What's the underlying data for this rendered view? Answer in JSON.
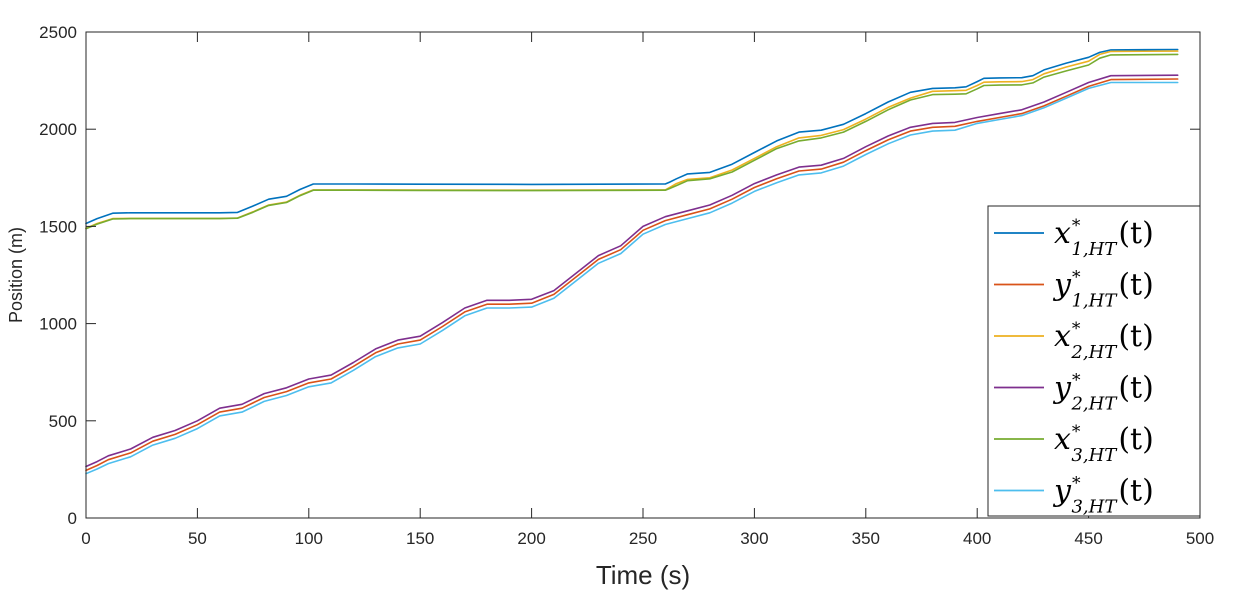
{
  "chart_data": {
    "type": "line",
    "xlabel": "Time (s)",
    "ylabel": "Position (m)",
    "xlim": [
      0,
      500
    ],
    "ylim": [
      0,
      2500
    ],
    "xticks": [
      0,
      50,
      100,
      150,
      200,
      250,
      300,
      350,
      400,
      450,
      500
    ],
    "yticks": [
      0,
      500,
      1000,
      1500,
      2000,
      2500
    ],
    "grid": false,
    "legend_position": "bottom-right",
    "series": [
      {
        "name": "x*1,HT(t)",
        "legend": {
          "var": "x",
          "sup": "*",
          "sub": "1,HT",
          "arg": "(t)"
        },
        "color": "#0072BD",
        "x": [
          0,
          5,
          12,
          20,
          40,
          60,
          68,
          75,
          82,
          90,
          96,
          102,
          120,
          150,
          200,
          260,
          262,
          265,
          270,
          280,
          290,
          300,
          310,
          320,
          330,
          340,
          350,
          360,
          370,
          380,
          390,
          395,
          400,
          403,
          410,
          420,
          425,
          430,
          440,
          450,
          455,
          460,
          490
        ],
        "y": [
          1515,
          1540,
          1568,
          1570,
          1570,
          1570,
          1572,
          1605,
          1640,
          1655,
          1690,
          1718,
          1718,
          1717,
          1716,
          1718,
          1728,
          1745,
          1770,
          1778,
          1820,
          1880,
          1940,
          1985,
          1995,
          2025,
          2080,
          2140,
          2190,
          2210,
          2213,
          2218,
          2245,
          2262,
          2264,
          2265,
          2275,
          2305,
          2340,
          2370,
          2395,
          2408,
          2410
        ]
      },
      {
        "name": "y*1,HT(t)",
        "legend": {
          "var": "y",
          "sup": "*",
          "sub": "1,HT",
          "arg": "(t)"
        },
        "color": "#D95319",
        "x": [
          0,
          5,
          10,
          20,
          30,
          40,
          50,
          60,
          70,
          80,
          90,
          100,
          110,
          120,
          130,
          140,
          150,
          160,
          170,
          180,
          190,
          200,
          210,
          220,
          230,
          240,
          250,
          260,
          270,
          280,
          290,
          300,
          310,
          320,
          330,
          340,
          350,
          360,
          370,
          380,
          390,
          400,
          410,
          420,
          430,
          440,
          450,
          460,
          490
        ],
        "y": [
          245,
          270,
          300,
          335,
          395,
          430,
          480,
          545,
          565,
          620,
          650,
          695,
          715,
          780,
          850,
          895,
          915,
          985,
          1060,
          1100,
          1100,
          1105,
          1150,
          1240,
          1330,
          1380,
          1480,
          1530,
          1560,
          1590,
          1640,
          1700,
          1745,
          1785,
          1795,
          1830,
          1890,
          1945,
          1990,
          2010,
          2015,
          2040,
          2060,
          2080,
          2120,
          2170,
          2220,
          2255,
          2258
        ]
      },
      {
        "name": "x*2,HT(t)",
        "legend": {
          "var": "x",
          "sup": "*",
          "sub": "2,HT",
          "arg": "(t)"
        },
        "color": "#EDB120",
        "x": [
          0,
          5,
          12,
          20,
          40,
          60,
          68,
          75,
          82,
          90,
          96,
          102,
          120,
          150,
          200,
          260,
          262,
          265,
          270,
          280,
          290,
          300,
          310,
          320,
          330,
          340,
          350,
          360,
          370,
          380,
          390,
          395,
          400,
          403,
          410,
          420,
          425,
          430,
          440,
          450,
          455,
          460,
          490
        ],
        "y": [
          1490,
          1515,
          1540,
          1541,
          1541,
          1541,
          1543,
          1575,
          1610,
          1625,
          1660,
          1688,
          1688,
          1687,
          1686,
          1688,
          1700,
          1720,
          1742,
          1750,
          1790,
          1850,
          1910,
          1955,
          1968,
          1998,
          2052,
          2112,
          2160,
          2195,
          2198,
          2200,
          2225,
          2242,
          2244,
          2245,
          2255,
          2285,
          2320,
          2350,
          2385,
          2400,
          2402
        ]
      },
      {
        "name": "y*2,HT(t)",
        "legend": {
          "var": "y",
          "sup": "*",
          "sub": "2,HT",
          "arg": "(t)"
        },
        "color": "#7E2F8E",
        "x": [
          0,
          5,
          10,
          20,
          30,
          40,
          50,
          60,
          70,
          80,
          90,
          100,
          110,
          120,
          130,
          140,
          150,
          160,
          170,
          180,
          190,
          200,
          210,
          220,
          230,
          240,
          250,
          260,
          270,
          280,
          290,
          300,
          310,
          320,
          330,
          340,
          350,
          360,
          370,
          380,
          390,
          400,
          410,
          420,
          430,
          440,
          450,
          460,
          490
        ],
        "y": [
          265,
          290,
          320,
          355,
          415,
          450,
          500,
          565,
          585,
          640,
          670,
          715,
          735,
          800,
          870,
          915,
          935,
          1005,
          1080,
          1120,
          1120,
          1125,
          1170,
          1260,
          1350,
          1400,
          1500,
          1550,
          1580,
          1610,
          1660,
          1720,
          1765,
          1805,
          1815,
          1850,
          1910,
          1965,
          2010,
          2030,
          2035,
          2060,
          2080,
          2100,
          2140,
          2190,
          2240,
          2275,
          2278
        ]
      },
      {
        "name": "x*3,HT(t)",
        "legend": {
          "var": "x",
          "sup": "*",
          "sub": "3,HT",
          "arg": "(t)"
        },
        "color": "#77AC30",
        "x": [
          0,
          5,
          12,
          20,
          40,
          60,
          68,
          75,
          82,
          90,
          96,
          102,
          120,
          150,
          200,
          260,
          262,
          265,
          270,
          280,
          290,
          300,
          310,
          320,
          330,
          340,
          350,
          360,
          370,
          380,
          390,
          395,
          400,
          403,
          410,
          420,
          425,
          430,
          440,
          450,
          455,
          460,
          490
        ],
        "y": [
          1488,
          1512,
          1538,
          1540,
          1540,
          1540,
          1542,
          1573,
          1608,
          1623,
          1658,
          1686,
          1686,
          1685,
          1684,
          1686,
          1695,
          1710,
          1735,
          1745,
          1780,
          1840,
          1900,
          1940,
          1955,
          1985,
          2040,
          2100,
          2150,
          2178,
          2180,
          2182,
          2208,
          2225,
          2227,
          2228,
          2238,
          2268,
          2300,
          2330,
          2365,
          2382,
          2385
        ]
      },
      {
        "name": "y*3,HT(t)",
        "legend": {
          "var": "y",
          "sup": "*",
          "sub": "3,HT",
          "arg": "(t)"
        },
        "color": "#4DBEEE",
        "x": [
          0,
          5,
          10,
          20,
          30,
          40,
          50,
          60,
          70,
          80,
          90,
          100,
          110,
          120,
          130,
          140,
          150,
          160,
          170,
          180,
          190,
          200,
          210,
          220,
          230,
          240,
          250,
          260,
          270,
          280,
          290,
          300,
          310,
          320,
          330,
          340,
          350,
          360,
          370,
          380,
          390,
          400,
          410,
          420,
          430,
          440,
          450,
          460,
          490
        ],
        "y": [
          228,
          252,
          280,
          315,
          375,
          410,
          460,
          525,
          545,
          600,
          630,
          675,
          695,
          760,
          830,
          875,
          895,
          965,
          1040,
          1080,
          1080,
          1085,
          1130,
          1220,
          1310,
          1360,
          1460,
          1510,
          1540,
          1570,
          1620,
          1680,
          1725,
          1765,
          1775,
          1810,
          1870,
          1925,
          1970,
          1990,
          1995,
          2030,
          2050,
          2070,
          2110,
          2160,
          2210,
          2240,
          2240
        ]
      }
    ]
  }
}
